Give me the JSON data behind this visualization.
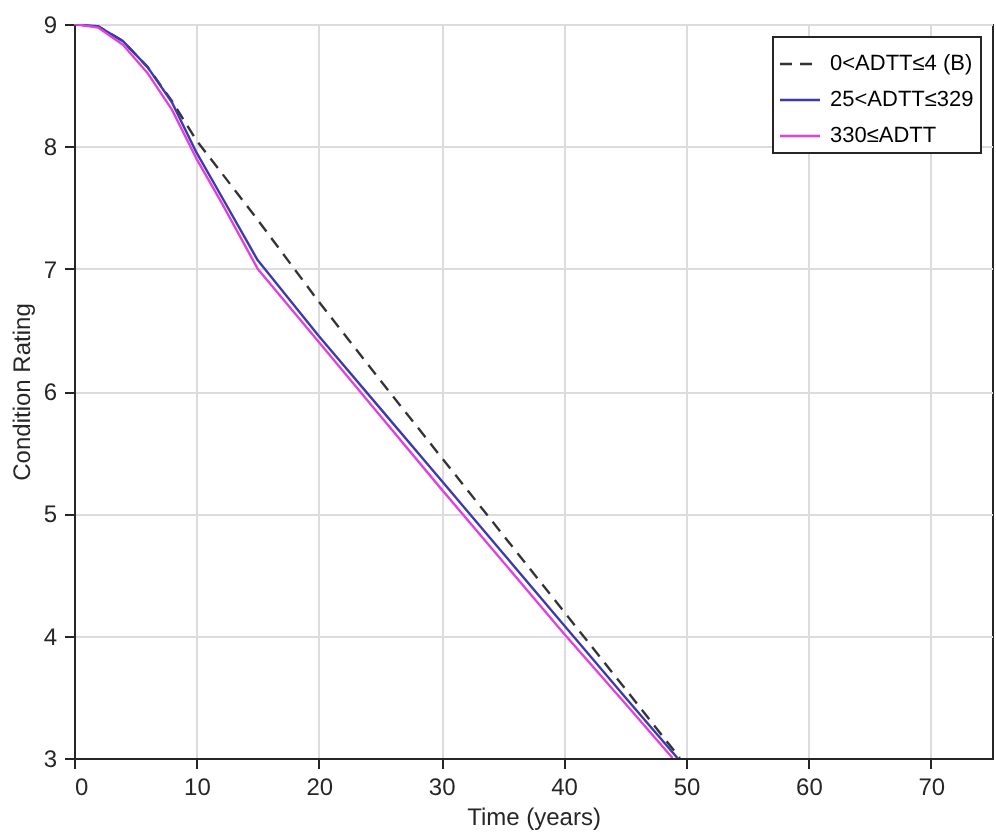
{
  "chart_data": {
    "type": "line",
    "xlabel": "Time (years)",
    "ylabel": "Condition Rating",
    "xlim": [
      0,
      75
    ],
    "xticks": [
      0,
      10,
      20,
      30,
      40,
      50,
      60,
      70
    ],
    "ylim": [
      3,
      9
    ],
    "yticks": [
      3,
      4,
      5,
      6,
      7,
      8,
      9
    ],
    "grid": true,
    "legend": "top right",
    "series": [
      {
        "name": "0<ADTT≤4 (B)",
        "color": "#333333",
        "line_style": "dashed",
        "x": [
          0,
          2,
          4,
          6,
          8,
          10,
          15,
          20,
          25,
          30,
          35,
          40,
          45,
          49.5
        ],
        "values": [
          9,
          8.98,
          8.86,
          8.65,
          8.37,
          8.05,
          7.4,
          6.73,
          6.09,
          5.46,
          4.83,
          4.2,
          3.57,
          3.0
        ]
      },
      {
        "name": "25<ADTT≤329",
        "color": "#3a3aa8",
        "line_style": "solid",
        "x": [
          0,
          2,
          4,
          6,
          8,
          10,
          12,
          15,
          20,
          25,
          30,
          35,
          40,
          45,
          49.3
        ],
        "values": [
          9,
          8.98,
          8.86,
          8.65,
          8.36,
          7.95,
          7.6,
          7.07,
          6.45,
          5.86,
          5.27,
          4.68,
          4.09,
          3.5,
          3.0
        ]
      },
      {
        "name": "330≤ADTT",
        "color": "#e040e0",
        "line_style": "solid",
        "x": [
          0,
          2,
          4,
          6,
          8,
          10,
          12,
          15,
          20,
          25,
          30,
          35,
          40,
          45,
          48.9
        ],
        "values": [
          9,
          8.97,
          8.83,
          8.6,
          8.3,
          7.9,
          7.55,
          7.0,
          6.4,
          5.8,
          5.2,
          4.61,
          4.02,
          3.45,
          3.0
        ]
      }
    ]
  }
}
